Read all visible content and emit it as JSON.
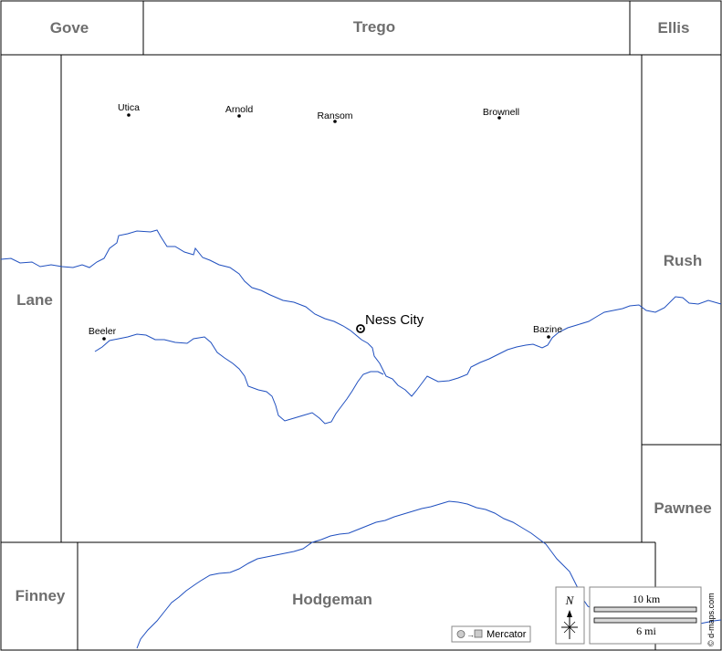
{
  "counties": {
    "gove": "Gove",
    "trego": "Trego",
    "ellis": "Ellis",
    "lane": "Lane",
    "rush": "Rush",
    "pawnee": "Pawnee",
    "finney": "Finney",
    "hodgeman": "Hodgeman"
  },
  "towns": {
    "utica": "Utica",
    "arnold": "Arnold",
    "ransom": "Ransom",
    "brownell": "Brownell",
    "beeler": "Beeler",
    "bazine": "Bazine"
  },
  "county_seat": "Ness City",
  "scale": {
    "km": "10 km",
    "mi": "6 mi"
  },
  "north": "N",
  "projection": "Mercator",
  "credit": "© d-maps.com",
  "colors": {
    "river": "#1f4fbf",
    "label": "#6e6e6e",
    "border": "#000000"
  }
}
